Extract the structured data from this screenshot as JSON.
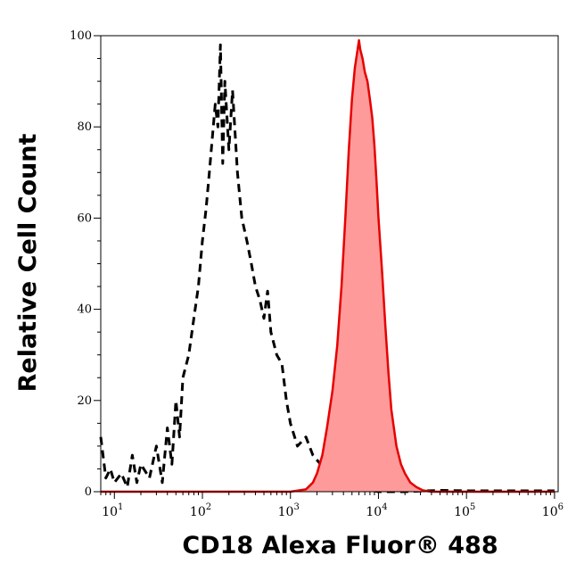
{
  "chart_data": {
    "type": "area",
    "xlabel": "CD18 Alexa Fluor® 488",
    "ylabel": "Relative Cell Count",
    "x_scale": "log",
    "xlim": [
      7,
      1100000
    ],
    "ylim": [
      0,
      100
    ],
    "grid": false,
    "legend": "none",
    "yticks": [
      0,
      20,
      40,
      60,
      80,
      100
    ],
    "xticks": [
      {
        "value": 10,
        "base": "10",
        "exp": "1"
      },
      {
        "value": 100,
        "base": "10",
        "exp": "2"
      },
      {
        "value": 1000,
        "base": "10",
        "exp": "3"
      },
      {
        "value": 10000,
        "base": "10",
        "exp": "4"
      },
      {
        "value": 100000,
        "base": "10",
        "exp": "5"
      },
      {
        "value": 1000000,
        "base": "10",
        "exp": "6"
      }
    ],
    "series": [
      {
        "style": "dashed-outline",
        "color": "#000000",
        "x": [
          7,
          8,
          9,
          10,
          12,
          14,
          16,
          18,
          20,
          25,
          30,
          35,
          40,
          45,
          50,
          55,
          60,
          70,
          80,
          90,
          100,
          110,
          120,
          130,
          140,
          150,
          160,
          170,
          180,
          200,
          220,
          250,
          280,
          320,
          360,
          400,
          450,
          500,
          550,
          600,
          700,
          800,
          900,
          1000,
          1200,
          1500,
          1800,
          2200,
          2600,
          3000,
          3500,
          4000,
          5000,
          7000,
          10000,
          20000,
          50000,
          100000,
          1000000
        ],
        "y": [
          12,
          3,
          5,
          2,
          4,
          1,
          8,
          2,
          6,
          3,
          10,
          2,
          14,
          6,
          20,
          12,
          25,
          30,
          38,
          45,
          55,
          62,
          70,
          78,
          85,
          80,
          98,
          72,
          90,
          75,
          88,
          70,
          60,
          55,
          50,
          45,
          42,
          38,
          44,
          35,
          30,
          28,
          20,
          15,
          10,
          12,
          8,
          6,
          5,
          4,
          3,
          2,
          1,
          0.5,
          0,
          0,
          0.3,
          0.2,
          0.2
        ]
      },
      {
        "style": "filled",
        "color": "#e60000",
        "fill": "#ff9a9a",
        "x": [
          7,
          1000,
          1500,
          1800,
          2000,
          2300,
          2600,
          3000,
          3400,
          3800,
          4200,
          4600,
          5000,
          5400,
          5800,
          6000,
          6200,
          6600,
          7000,
          7500,
          8000,
          8500,
          9000,
          9500,
          10000,
          11000,
          12000,
          13000,
          14000,
          16000,
          18000,
          20000,
          23000,
          27000,
          32000,
          40000,
          1000000
        ],
        "y": [
          0,
          0,
          0.5,
          2,
          4,
          8,
          14,
          22,
          32,
          45,
          60,
          75,
          86,
          93,
          97,
          99,
          97,
          95,
          92,
          90,
          86,
          82,
          76,
          68,
          60,
          48,
          36,
          26,
          18,
          10,
          6,
          4,
          2,
          1,
          0.3,
          0,
          0
        ]
      }
    ]
  }
}
